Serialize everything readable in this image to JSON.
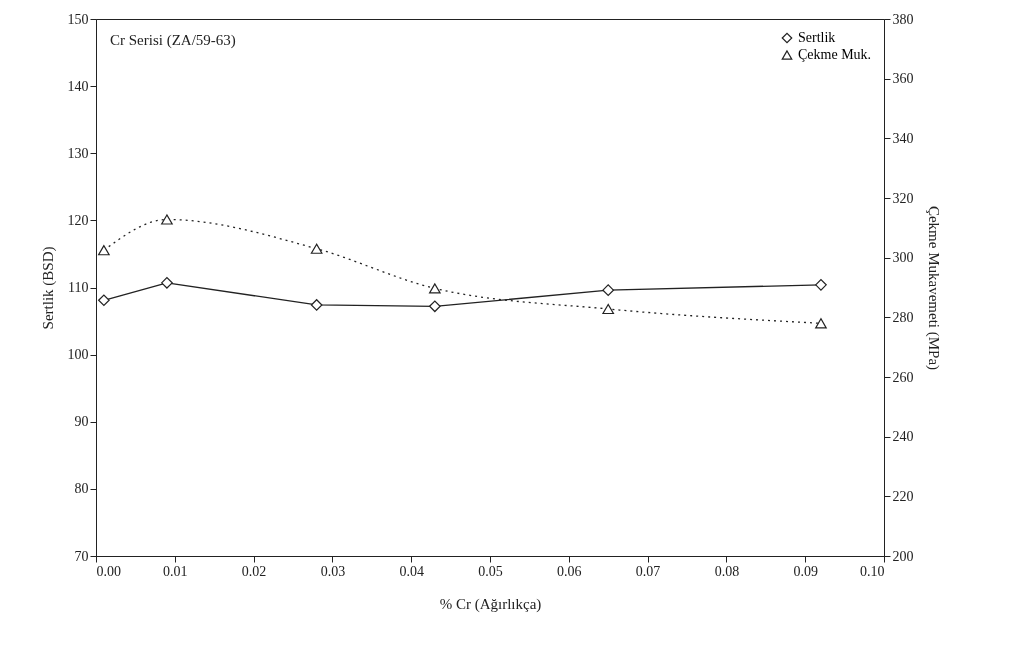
{
  "chart_data": {
    "type": "line",
    "xlabel": "% Cr (Ağırlıkça)",
    "ylabel": "Sertlik (BSD)",
    "y2label": "Çekme Mukavemeti (MPa)",
    "annotations": [
      "Cr Serisi (ZA/59-63)"
    ],
    "x": [
      0.001,
      0.009,
      0.028,
      0.043,
      0.065,
      0.092
    ],
    "series": [
      {
        "name": "Sertlik",
        "color": "#222222",
        "marker": "diamond",
        "line_style": "solid",
        "values": [
          108.1,
          110.7,
          107.4,
          107.2,
          109.6,
          110.4
        ]
      },
      {
        "name": "Çekme Muk.",
        "color": "#222222",
        "marker": "triangle",
        "line_style": "dotted",
        "axis": "y2",
        "values": [
          302.5,
          312.8,
          303,
          289.7,
          282.8,
          278
        ]
      }
    ],
    "xlim": [
      0,
      0.1
    ],
    "xticks": [
      {
        "value": 0,
        "label": "0.00"
      },
      {
        "value": 0.01,
        "label": "0.01"
      },
      {
        "value": 0.02,
        "label": "0.02"
      },
      {
        "value": 0.03,
        "label": "0.03"
      },
      {
        "value": 0.04,
        "label": "0.04"
      },
      {
        "value": 0.05,
        "label": "0.05"
      },
      {
        "value": 0.06,
        "label": "0.06"
      },
      {
        "value": 0.07,
        "label": "0.07"
      },
      {
        "value": 0.08,
        "label": "0.08"
      },
      {
        "value": 0.09,
        "label": "0.09"
      },
      {
        "value": 0.1,
        "label": "0.10"
      }
    ],
    "ylim": [
      70,
      150
    ],
    "yticks": [
      70,
      80,
      90,
      100,
      110,
      120,
      130,
      140,
      150
    ],
    "y2lim": [
      200,
      380
    ],
    "y2ticks": [
      200,
      220,
      240,
      260,
      280,
      300,
      320,
      340,
      360,
      380
    ],
    "grid": false,
    "legend": "top right"
  }
}
